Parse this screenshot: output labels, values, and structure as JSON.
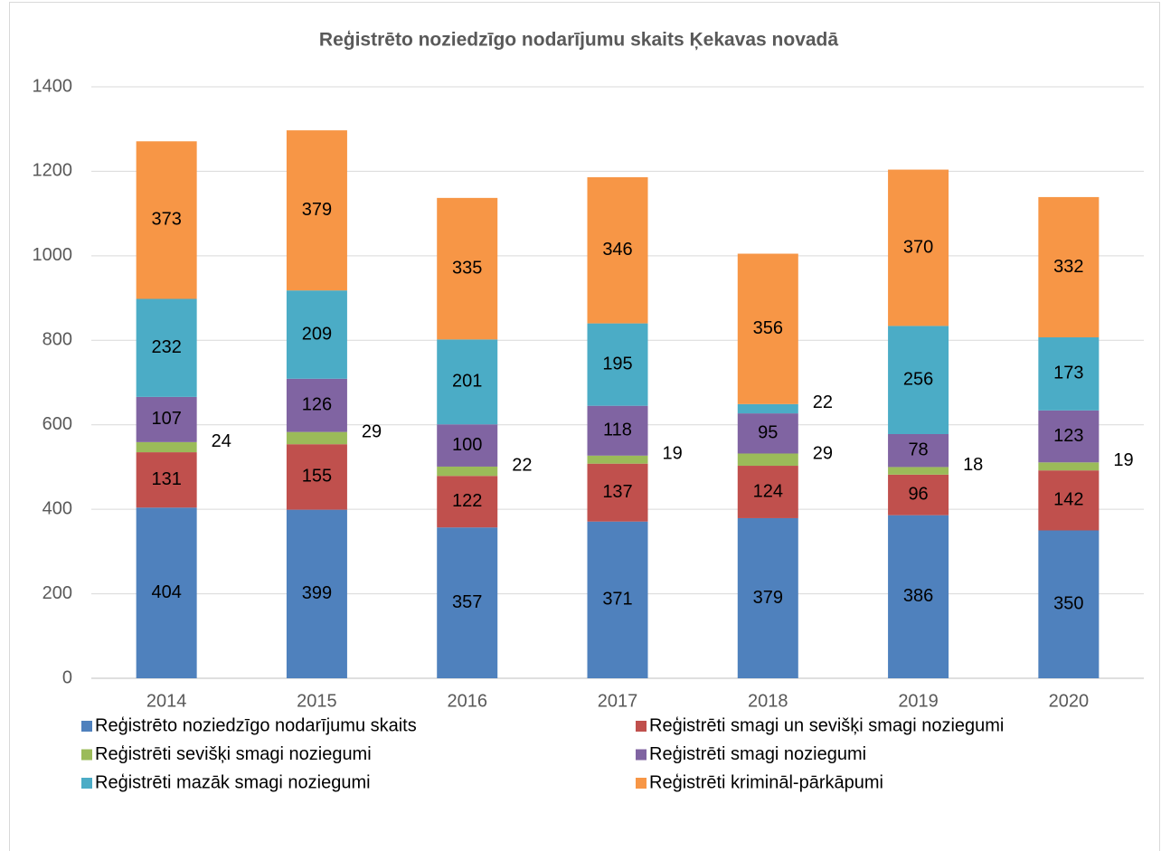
{
  "chart_data": {
    "type": "stacked_bar",
    "title": "Reģistrēto noziedzīgo nodarījumu skaits Ķekavas novadā",
    "categories": [
      "2014",
      "2015",
      "2016",
      "2017",
      "2018",
      "2019",
      "2020"
    ],
    "series": [
      {
        "name": "Reģistrēto noziedzīgo nodarījumu skaits",
        "color": "#4f81bd",
        "values": [
          404,
          399,
          357,
          371,
          379,
          386,
          350
        ]
      },
      {
        "name": "Reģistrēti smagi un sevišķi smagi noziegumi",
        "color": "#c0504d",
        "values": [
          131,
          155,
          122,
          137,
          124,
          96,
          142
        ]
      },
      {
        "name": "Reģistrēti sevišķi smagi noziegumi",
        "color": "#9bbb59",
        "values": [
          24,
          29,
          22,
          19,
          29,
          18,
          19
        ]
      },
      {
        "name": "Reģistrēti smagi noziegumi",
        "color": "#8064a2",
        "values": [
          107,
          126,
          100,
          118,
          95,
          78,
          123
        ]
      },
      {
        "name": "Reģistrēti mazāk smagi noziegumi",
        "color": "#4bacc6",
        "values": [
          232,
          209,
          201,
          195,
          22,
          256,
          173
        ]
      },
      {
        "name": "Reģistrēti krimināl-pārkāpumi",
        "color": "#f79646",
        "values": [
          373,
          379,
          335,
          346,
          356,
          370,
          332
        ]
      }
    ],
    "ylim": [
      0,
      1400
    ],
    "yticks": [
      0,
      200,
      400,
      600,
      800,
      1000,
      1200,
      1400
    ],
    "grid": true,
    "legend": "bottom"
  }
}
